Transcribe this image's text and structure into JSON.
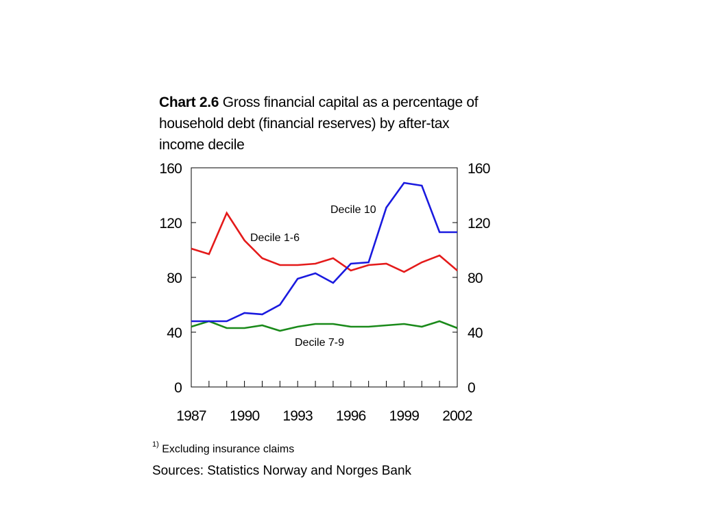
{
  "title": {
    "bold": "Chart 2.6",
    "text": "Gross financial capital as a percentage of household debt (financial reserves) by after-tax income decile"
  },
  "footnote": {
    "marker": "1)",
    "text": "Excluding insurance claims"
  },
  "sources": "Sources: Statistics Norway and Norges Bank",
  "chart_data": {
    "type": "line",
    "x": [
      1987,
      1988,
      1989,
      1990,
      1991,
      1992,
      1993,
      1994,
      1995,
      1996,
      1997,
      1998,
      1999,
      2000,
      2001,
      2002
    ],
    "xticks": [
      "1987",
      "1990",
      "1993",
      "1996",
      "1999",
      "2002"
    ],
    "yticks_left": [
      "0",
      "40",
      "80",
      "120",
      "160"
    ],
    "yticks_right": [
      "0",
      "40",
      "80",
      "120",
      "160"
    ],
    "ylim": [
      0,
      160
    ],
    "xlim": [
      1987,
      2002
    ],
    "grid": false,
    "series": [
      {
        "name": "Decile 1-6",
        "color": "#e41a1a",
        "values": [
          101,
          97,
          127,
          107,
          94,
          89,
          89,
          90,
          94,
          85,
          89,
          90,
          84,
          91,
          96,
          85
        ]
      },
      {
        "name": "Decile 7-9",
        "color": "#1a8a1a",
        "values": [
          44,
          48,
          43,
          43,
          45,
          41,
          44,
          46,
          46,
          44,
          44,
          45,
          46,
          44,
          48,
          43
        ]
      },
      {
        "name": "Decile 10",
        "color": "#1a1adf",
        "values": [
          48,
          48,
          48,
          54,
          53,
          60,
          79,
          83,
          76,
          90,
          91,
          131,
          149,
          147,
          113,
          113
        ]
      }
    ]
  }
}
